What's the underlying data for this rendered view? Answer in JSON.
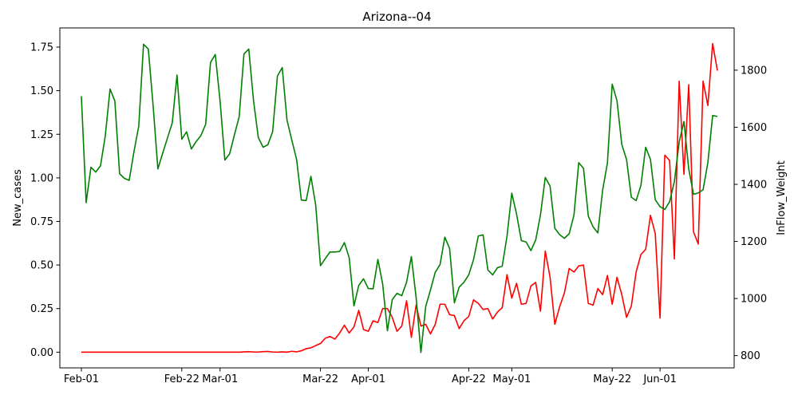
{
  "chart_data": {
    "type": "line",
    "title": "Arizona--04",
    "ylabel_left": "New_cases",
    "ylabel_right": "InFlow_Weight",
    "xlabel": "",
    "x_tick_labels": [
      {
        "label": "Feb-01",
        "day": 0
      },
      {
        "label": "Feb-22",
        "day": 21
      },
      {
        "label": "Mar-01",
        "day": 29
      },
      {
        "label": "Mar-22",
        "day": 50
      },
      {
        "label": "Apr-01",
        "day": 60
      },
      {
        "label": "Apr-22",
        "day": 81
      },
      {
        "label": "May-01",
        "day": 90
      },
      {
        "label": "May-22",
        "day": 111
      },
      {
        "label": "Jun-01",
        "day": 121
      }
    ],
    "xlim": [
      -4.5,
      136.5
    ],
    "ylim_left": [
      -0.09,
      1.86
    ],
    "ylim_right": [
      757,
      1948
    ],
    "y_ticks_left": [
      0.0,
      0.25,
      0.5,
      0.75,
      1.0,
      1.25,
      1.5,
      1.75
    ],
    "y_tick_labels_left": [
      "0.00",
      "0.25",
      "0.50",
      "0.75",
      "1.00",
      "1.25",
      "1.50",
      "1.75"
    ],
    "y_ticks_right": [
      800,
      1000,
      1200,
      1400,
      1600,
      1800
    ],
    "y_tick_labels_right": [
      "800",
      "1000",
      "1200",
      "1400",
      "1600",
      "1800"
    ],
    "grid": false,
    "legend": "none",
    "series": [
      {
        "color": "#ff0000",
        "axis": "left",
        "points": [
          [
            0,
            0
          ],
          [
            1,
            0
          ],
          [
            2,
            0
          ],
          [
            3,
            0
          ],
          [
            4,
            0
          ],
          [
            5,
            0
          ],
          [
            6,
            0
          ],
          [
            7,
            0
          ],
          [
            8,
            0
          ],
          [
            9,
            0
          ],
          [
            10,
            0
          ],
          [
            11,
            0
          ],
          [
            12,
            0
          ],
          [
            13,
            0
          ],
          [
            14,
            0
          ],
          [
            15,
            0
          ],
          [
            16,
            0
          ],
          [
            17,
            0
          ],
          [
            18,
            0
          ],
          [
            19,
            0
          ],
          [
            20,
            0
          ],
          [
            21,
            0
          ],
          [
            22,
            0
          ],
          [
            23,
            0
          ],
          [
            24,
            0
          ],
          [
            25,
            0
          ],
          [
            26,
            0
          ],
          [
            27,
            0
          ],
          [
            28,
            0
          ],
          [
            29,
            0
          ],
          [
            30,
            0
          ],
          [
            31,
            0
          ],
          [
            32,
            0
          ],
          [
            33,
            0
          ],
          [
            34,
            0.002
          ],
          [
            35,
            0.003
          ],
          [
            36,
            0.001
          ],
          [
            37,
            0.001
          ],
          [
            38,
            0.003
          ],
          [
            39,
            0.004
          ],
          [
            40,
            0.001
          ],
          [
            41,
            0
          ],
          [
            42,
            0.002
          ],
          [
            43,
            0
          ],
          [
            44,
            0.005
          ],
          [
            45,
            0.002
          ],
          [
            46,
            0.008
          ],
          [
            47,
            0.02
          ],
          [
            48,
            0.025
          ],
          [
            49,
            0.038
          ],
          [
            50,
            0.05
          ],
          [
            51,
            0.08
          ],
          [
            52,
            0.09
          ],
          [
            53,
            0.075
          ],
          [
            54,
            0.11
          ],
          [
            55,
            0.155
          ],
          [
            56,
            0.11
          ],
          [
            57,
            0.145
          ],
          [
            58,
            0.24
          ],
          [
            59,
            0.13
          ],
          [
            60,
            0.12
          ],
          [
            61,
            0.18
          ],
          [
            62,
            0.17
          ],
          [
            63,
            0.25
          ],
          [
            64,
            0.25
          ],
          [
            65,
            0.2
          ],
          [
            66,
            0.12
          ],
          [
            67,
            0.15
          ],
          [
            68,
            0.295
          ],
          [
            69,
            0.085
          ],
          [
            70,
            0.27
          ],
          [
            71,
            0.15
          ],
          [
            72,
            0.16
          ],
          [
            73,
            0.105
          ],
          [
            74,
            0.16
          ],
          [
            75,
            0.275
          ],
          [
            76,
            0.275
          ],
          [
            77,
            0.215
          ],
          [
            78,
            0.21
          ],
          [
            79,
            0.135
          ],
          [
            80,
            0.18
          ],
          [
            81,
            0.205
          ],
          [
            82,
            0.3
          ],
          [
            83,
            0.28
          ],
          [
            84,
            0.245
          ],
          [
            85,
            0.25
          ],
          [
            86,
            0.19
          ],
          [
            87,
            0.23
          ],
          [
            88,
            0.255
          ],
          [
            89,
            0.445
          ],
          [
            90,
            0.31
          ],
          [
            91,
            0.395
          ],
          [
            92,
            0.275
          ],
          [
            93,
            0.28
          ],
          [
            94,
            0.38
          ],
          [
            95,
            0.4
          ],
          [
            96,
            0.235
          ],
          [
            97,
            0.58
          ],
          [
            98,
            0.43
          ],
          [
            99,
            0.16
          ],
          [
            100,
            0.26
          ],
          [
            101,
            0.34
          ],
          [
            102,
            0.48
          ],
          [
            103,
            0.46
          ],
          [
            104,
            0.495
          ],
          [
            105,
            0.5
          ],
          [
            106,
            0.28
          ],
          [
            107,
            0.27
          ],
          [
            108,
            0.365
          ],
          [
            109,
            0.33
          ],
          [
            110,
            0.44
          ],
          [
            111,
            0.275
          ],
          [
            112,
            0.43
          ],
          [
            113,
            0.33
          ],
          [
            114,
            0.2
          ],
          [
            115,
            0.265
          ],
          [
            116,
            0.46
          ],
          [
            117,
            0.56
          ],
          [
            118,
            0.59
          ],
          [
            119,
            0.785
          ],
          [
            120,
            0.68
          ],
          [
            121,
            0.195
          ],
          [
            122,
            1.13
          ],
          [
            123,
            1.1
          ],
          [
            124,
            0.535
          ],
          [
            125,
            1.555
          ],
          [
            126,
            1.02
          ],
          [
            127,
            1.535
          ],
          [
            128,
            0.69
          ],
          [
            129,
            0.62
          ],
          [
            130,
            1.555
          ],
          [
            131,
            1.415
          ],
          [
            132,
            1.77
          ],
          [
            133,
            1.615
          ]
        ]
      },
      {
        "color": "#008000",
        "axis": "right",
        "points": [
          [
            0,
            1709
          ],
          [
            1,
            1336
          ],
          [
            2,
            1460
          ],
          [
            3,
            1443
          ],
          [
            4,
            1465
          ],
          [
            5,
            1570
          ],
          [
            6,
            1734
          ],
          [
            7,
            1692
          ],
          [
            8,
            1437
          ],
          [
            9,
            1421
          ],
          [
            10,
            1414
          ],
          [
            11,
            1515
          ],
          [
            12,
            1604
          ],
          [
            13,
            1891
          ],
          [
            14,
            1874
          ],
          [
            15,
            1676
          ],
          [
            16,
            1454
          ],
          [
            17,
            1509
          ],
          [
            18,
            1562
          ],
          [
            19,
            1615
          ],
          [
            20,
            1783
          ],
          [
            21,
            1558
          ],
          [
            22,
            1584
          ],
          [
            23,
            1524
          ],
          [
            24,
            1550
          ],
          [
            25,
            1571
          ],
          [
            26,
            1611
          ],
          [
            27,
            1827
          ],
          [
            28,
            1855
          ],
          [
            29,
            1693
          ],
          [
            30,
            1485
          ],
          [
            31,
            1507
          ],
          [
            32,
            1573
          ],
          [
            33,
            1637
          ],
          [
            34,
            1857
          ],
          [
            35,
            1874
          ],
          [
            36,
            1693
          ],
          [
            37,
            1564
          ],
          [
            38,
            1530
          ],
          [
            39,
            1539
          ],
          [
            40,
            1585
          ],
          [
            41,
            1780
          ],
          [
            42,
            1809
          ],
          [
            43,
            1625
          ],
          [
            44,
            1555
          ],
          [
            45,
            1488
          ],
          [
            46,
            1345
          ],
          [
            47,
            1343
          ],
          [
            48,
            1428
          ],
          [
            49,
            1327
          ],
          [
            50,
            1115
          ],
          [
            51,
            1140
          ],
          [
            52,
            1163
          ],
          [
            53,
            1163
          ],
          [
            54,
            1165
          ],
          [
            55,
            1196
          ],
          [
            56,
            1143
          ],
          [
            57,
            974
          ],
          [
            58,
            1046
          ],
          [
            59,
            1069
          ],
          [
            60,
            1035
          ],
          [
            61,
            1034
          ],
          [
            62,
            1137
          ],
          [
            63,
            1051
          ],
          [
            64,
            887
          ],
          [
            65,
            996
          ],
          [
            66,
            1018
          ],
          [
            67,
            1010
          ],
          [
            68,
            1057
          ],
          [
            69,
            1147
          ],
          [
            70,
            1003
          ],
          [
            71,
            811
          ],
          [
            72,
            972
          ],
          [
            73,
            1030
          ],
          [
            74,
            1092
          ],
          [
            75,
            1119
          ],
          [
            76,
            1215
          ],
          [
            77,
            1175
          ],
          [
            78,
            985
          ],
          [
            79,
            1040
          ],
          [
            80,
            1057
          ],
          [
            81,
            1083
          ],
          [
            82,
            1136
          ],
          [
            83,
            1219
          ],
          [
            84,
            1223
          ],
          [
            85,
            1100
          ],
          [
            86,
            1083
          ],
          [
            87,
            1108
          ],
          [
            88,
            1113
          ],
          [
            89,
            1218
          ],
          [
            90,
            1369
          ],
          [
            91,
            1296
          ],
          [
            92,
            1203
          ],
          [
            93,
            1198
          ],
          [
            94,
            1168
          ],
          [
            95,
            1205
          ],
          [
            96,
            1293
          ],
          [
            97,
            1424
          ],
          [
            98,
            1394
          ],
          [
            99,
            1246
          ],
          [
            100,
            1224
          ],
          [
            101,
            1211
          ],
          [
            102,
            1227
          ],
          [
            103,
            1292
          ],
          [
            104,
            1476
          ],
          [
            105,
            1456
          ],
          [
            106,
            1289
          ],
          [
            107,
            1251
          ],
          [
            108,
            1230
          ],
          [
            109,
            1380
          ],
          [
            110,
            1475
          ],
          [
            111,
            1751
          ],
          [
            112,
            1693
          ],
          [
            113,
            1540
          ],
          [
            114,
            1487
          ],
          [
            115,
            1355
          ],
          [
            116,
            1343
          ],
          [
            117,
            1396
          ],
          [
            118,
            1530
          ],
          [
            119,
            1487
          ],
          [
            120,
            1346
          ],
          [
            121,
            1322
          ],
          [
            122,
            1312
          ],
          [
            123,
            1339
          ],
          [
            124,
            1410
          ],
          [
            125,
            1548
          ],
          [
            126,
            1620
          ],
          [
            127,
            1454
          ],
          [
            128,
            1365
          ],
          [
            129,
            1370
          ],
          [
            130,
            1381
          ],
          [
            131,
            1476
          ],
          [
            132,
            1641
          ],
          [
            133,
            1638
          ]
        ]
      }
    ]
  }
}
